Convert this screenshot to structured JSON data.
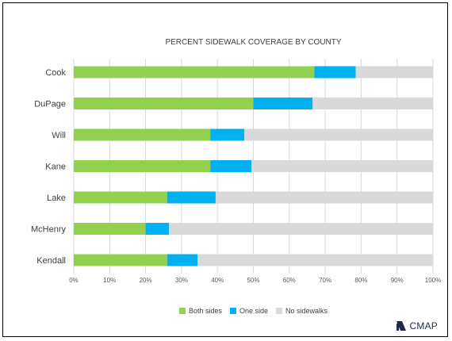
{
  "chart_data": {
    "type": "bar",
    "orientation": "horizontal",
    "stacked": true,
    "title": "PERCENT SIDEWALK COVERAGE BY COUNTY",
    "xlabel": "",
    "ylabel": "",
    "categories": [
      "Cook",
      "DuPage",
      "Will",
      "Kane",
      "Lake",
      "McHenry",
      "Kendall"
    ],
    "series": [
      {
        "name": "Both sides",
        "color": "#92d050",
        "values": [
          67,
          50,
          38,
          38,
          26,
          20,
          26
        ]
      },
      {
        "name": "One side",
        "color": "#00b0f0",
        "values": [
          11.5,
          16.5,
          9.5,
          11.5,
          13.5,
          6.5,
          8.5
        ]
      },
      {
        "name": "No sidewalks",
        "color": "#d9d9d9",
        "values": [
          21.5,
          33.5,
          52.5,
          50.5,
          60.5,
          73.5,
          65.5
        ]
      }
    ],
    "xlim": [
      0,
      100
    ],
    "xticks": [
      0,
      10,
      20,
      30,
      40,
      50,
      60,
      70,
      80,
      90,
      100
    ],
    "xtick_labels": [
      "0%",
      "10%",
      "20%",
      "30%",
      "40%",
      "50%",
      "60%",
      "70%",
      "80%",
      "90%",
      "100%"
    ],
    "grid": true,
    "legend_position": "bottom"
  },
  "branding": {
    "logo_text": "CMAP",
    "logo_icon": "cmap-logo-icon"
  }
}
